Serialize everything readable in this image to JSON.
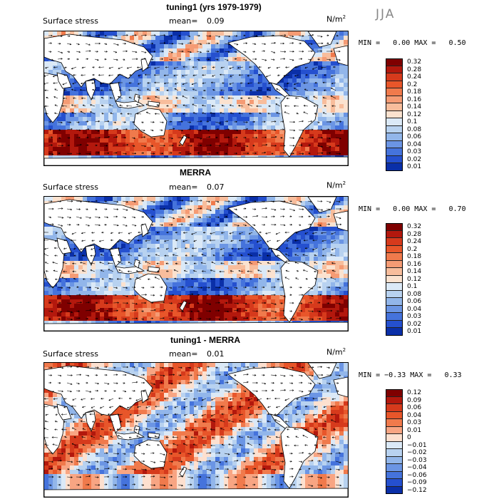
{
  "season": "JJA",
  "units_label": "N/m",
  "units_exp": "2",
  "panels": [
    {
      "title": "tuning1 (yrs 1979-1979)",
      "field": "Surface stress",
      "mean_label": "mean=",
      "mean_value": "0.09",
      "min_label": "MIN =",
      "min_value": "0.00",
      "max_label": "MAX =",
      "max_value": "0.50",
      "colorbar": [
        "0.32",
        "0.28",
        "0.24",
        "0.2",
        "0.18",
        "0.16",
        "0.14",
        "0.12",
        "0.1",
        "0.08",
        "0.06",
        "0.04",
        "0.03",
        "0.02",
        "0.01"
      ],
      "colors": [
        "#7f0000",
        "#b3180d",
        "#d63a1c",
        "#e8562a",
        "#f07a4c",
        "#f59b74",
        "#f8bd9c",
        "#fbe2cf",
        "#dbe9f7",
        "#b8d2f0",
        "#92b6ea",
        "#6b95e4",
        "#4573dc",
        "#2550cf",
        "#0a2fa8"
      ]
    },
    {
      "title": "MERRA",
      "field": "Surface stress",
      "mean_label": "mean=",
      "mean_value": "0.07",
      "min_label": "MIN =",
      "min_value": "0.00",
      "max_label": "MAX =",
      "max_value": "0.70",
      "colorbar": [
        "0.32",
        "0.28",
        "0.24",
        "0.2",
        "0.18",
        "0.16",
        "0.14",
        "0.12",
        "0.1",
        "0.08",
        "0.06",
        "0.04",
        "0.03",
        "0.02",
        "0.01"
      ],
      "colors": [
        "#7f0000",
        "#b3180d",
        "#d63a1c",
        "#e8562a",
        "#f07a4c",
        "#f59b74",
        "#f8bd9c",
        "#fbe2cf",
        "#dbe9f7",
        "#b8d2f0",
        "#92b6ea",
        "#6b95e4",
        "#4573dc",
        "#2550cf",
        "#0a2fa8"
      ]
    },
    {
      "title": "tuning1 - MERRA",
      "field": "Surface stress",
      "mean_label": "mean=",
      "mean_value": "0.01",
      "min_label": "MIN =",
      "min_value": "−0.33",
      "max_label": "MAX =",
      "max_value": "0.33",
      "colorbar": [
        "0.12",
        "0.09",
        "0.06",
        "0.04",
        "0.03",
        "0.01",
        "0",
        "−0.01",
        "−0.02",
        "−0.03",
        "−0.04",
        "−0.06",
        "−0.09",
        "−0.12"
      ],
      "colors": [
        "#7f0000",
        "#b3180d",
        "#d63a1c",
        "#e8562a",
        "#f07a4c",
        "#f8a583",
        "#fde0cf",
        "#dbe9f7",
        "#b8d2f0",
        "#92b6ea",
        "#6b95e4",
        "#4573dc",
        "#2550cf",
        "#0a2fa8"
      ]
    }
  ]
}
